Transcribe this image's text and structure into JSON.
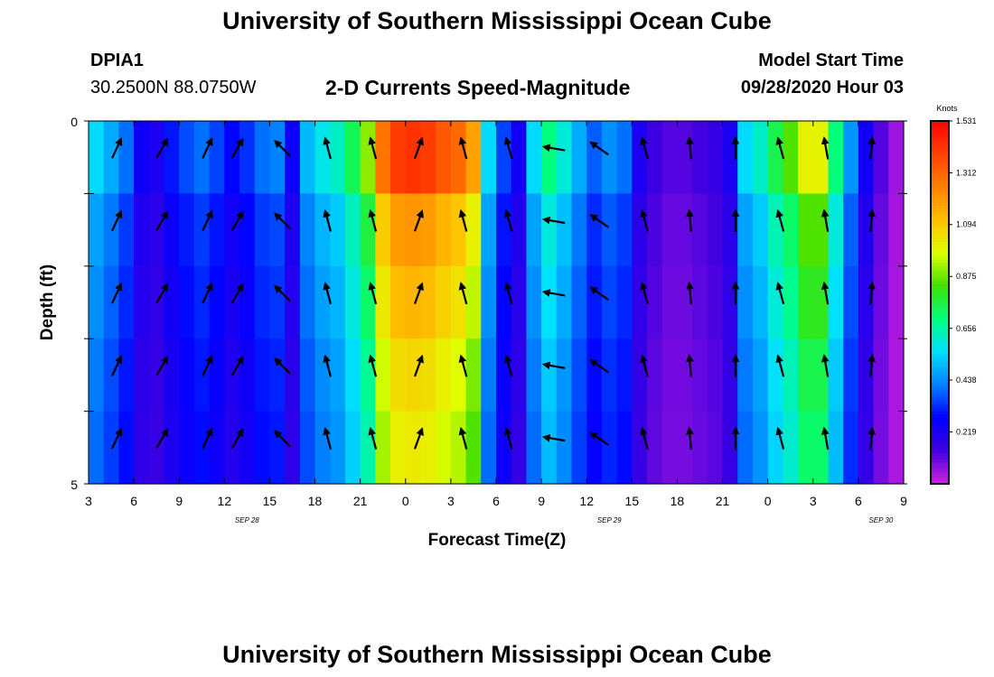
{
  "header": {
    "title_top": "University of Southern Mississippi Ocean Cube",
    "title_bottom": "University of Southern Mississippi Ocean Cube",
    "station": "DPIA1",
    "location": "30.2500N 88.0750W",
    "subtitle": "2-D Currents Speed-Magnitude",
    "model_label": "Model Start Time",
    "model_time": "09/28/2020 Hour 03"
  },
  "chart_data": {
    "type": "heatmap",
    "xlabel": "Forecast Time(Z)",
    "ylabel": "Depth (ft)",
    "x_tick_labels": [
      "3",
      "6",
      "9",
      "12",
      "15",
      "18",
      "21",
      "0",
      "3",
      "6",
      "9",
      "12",
      "15",
      "18",
      "21",
      "0",
      "3",
      "6",
      "9"
    ],
    "date_labels": [
      "SEP 28",
      "SEP 29",
      "SEP 30"
    ],
    "date_label_ticks": [
      3,
      11,
      17
    ],
    "y_tick_labels": [
      "0",
      "5"
    ],
    "ylim": [
      0,
      5
    ],
    "hours": 54,
    "depth_layers": 5,
    "colorbar": {
      "title": "Knots",
      "ticks": [
        "1.531",
        "1.312",
        "1.094",
        "0.875",
        "0.656",
        "0.438",
        "0.219"
      ],
      "range": [
        0,
        1.531
      ],
      "colors": [
        "#d020e0",
        "#4000e0",
        "#0000ff",
        "#0080ff",
        "#00e0ff",
        "#00ff80",
        "#40e000",
        "#e0ff00",
        "#ffc000",
        "#ff8000",
        "#ff4000",
        "#ff0000"
      ]
    },
    "speed_profile": [
      0.55,
      0.48,
      0.4,
      0.25,
      0.22,
      0.3,
      0.36,
      0.4,
      0.35,
      0.28,
      0.33,
      0.4,
      0.42,
      0.25,
      0.5,
      0.58,
      0.62,
      0.74,
      0.9,
      1.28,
      1.4,
      1.42,
      1.4,
      1.34,
      1.3,
      1.18,
      0.55,
      0.35,
      0.24,
      0.55,
      0.7,
      0.6,
      0.48,
      0.38,
      0.44,
      0.4,
      0.22,
      0.15,
      0.12,
      0.12,
      0.14,
      0.16,
      0.22,
      0.55,
      0.62,
      0.75,
      0.85,
      1.0,
      1.0,
      0.7,
      0.45,
      0.24,
      0.12,
      0.05
    ],
    "depth_factors": [
      1.0,
      0.85,
      0.8,
      0.75,
      0.72
    ],
    "vector_hours": [
      1,
      4,
      7,
      9,
      12,
      15,
      18,
      21,
      24,
      27,
      30,
      33,
      36,
      39,
      42,
      45,
      48,
      51
    ],
    "vector_directions_deg": [
      25,
      30,
      25,
      30,
      315,
      345,
      345,
      20,
      345,
      345,
      280,
      305,
      345,
      355,
      360,
      345,
      350,
      5
    ]
  }
}
